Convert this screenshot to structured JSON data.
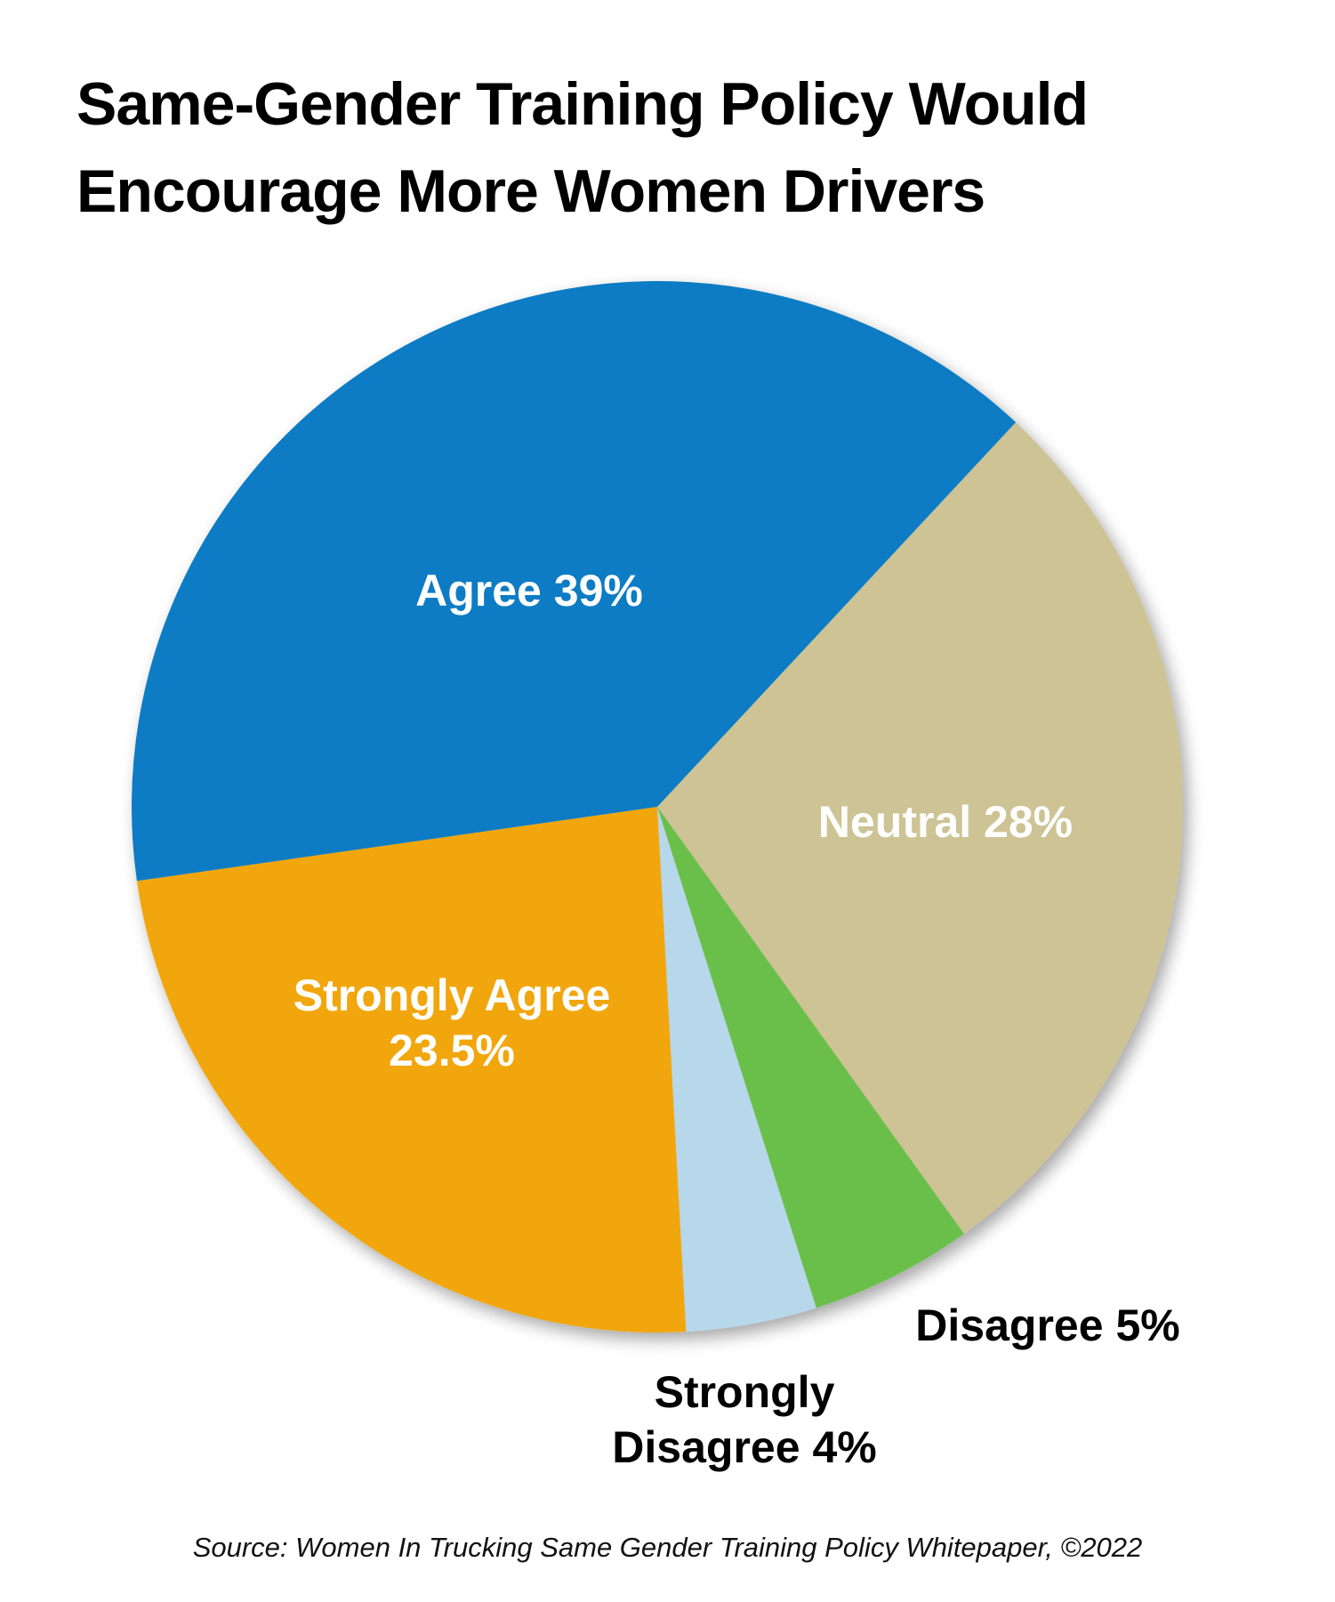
{
  "chart_data": {
    "type": "pie",
    "title": "Same-Gender Training Policy Would Encourage More Women Drivers",
    "source": "Source: Women In Trucking Same Gender Training Policy Whitepaper, ©2022",
    "categories": [
      "Neutral",
      "Disagree",
      "Strongly Disagree",
      "Strongly Agree",
      "Agree"
    ],
    "values": [
      28,
      5,
      4,
      23.5,
      39
    ],
    "value_labels": [
      "28%",
      "5%",
      "4%",
      "23.5%",
      "39%"
    ],
    "colors": [
      "#cdc394",
      "#6abf4b",
      "#b7d7ea",
      "#f2a60b",
      "#0a7bc4"
    ]
  }
}
